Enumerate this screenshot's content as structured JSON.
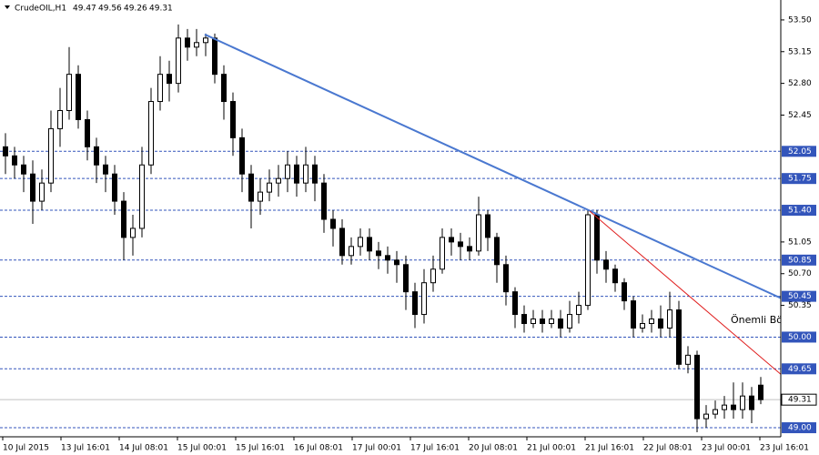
{
  "chart_data": {
    "type": "candlestick",
    "title": "CrudeOIL,H1",
    "header_values": [
      "49.47",
      "49.56",
      "49.26",
      "49.31"
    ],
    "open": [
      52.1,
      52.0,
      51.9,
      51.8,
      51.5,
      51.7,
      52.3,
      52.5,
      52.9,
      52.4,
      52.1,
      51.9,
      51.8,
      51.5,
      51.1,
      51.2,
      51.9,
      52.6,
      52.9,
      52.8,
      53.3,
      53.2,
      53.25,
      53.3,
      52.9,
      52.6,
      52.2,
      51.8,
      51.5,
      51.6,
      51.7,
      51.75,
      51.9,
      51.7,
      51.9,
      51.7,
      51.3,
      51.2,
      50.9,
      51.0,
      51.1,
      50.95,
      50.9,
      50.85,
      50.8,
      50.5,
      50.25,
      50.6,
      50.75,
      51.1,
      51.05,
      51.0,
      50.95,
      51.35,
      51.1,
      50.8,
      50.5,
      50.25,
      50.15,
      50.2,
      50.15,
      50.2,
      50.1,
      50.25,
      50.35,
      51.35,
      50.85,
      50.75,
      50.6,
      50.4,
      50.1,
      50.15,
      50.2,
      50.1,
      50.3,
      49.7,
      49.8,
      49.1,
      49.15,
      49.2,
      49.25,
      49.2,
      49.35,
      49.47
    ],
    "high": [
      52.25,
      52.1,
      52.0,
      51.95,
      51.85,
      52.5,
      52.75,
      53.2,
      53.0,
      52.5,
      52.2,
      52.0,
      51.9,
      51.6,
      51.35,
      52.1,
      52.75,
      53.1,
      53.05,
      53.45,
      53.4,
      53.4,
      53.35,
      53.35,
      53.0,
      52.7,
      52.3,
      51.9,
      51.75,
      51.85,
      51.9,
      52.05,
      52.0,
      52.1,
      52.0,
      51.8,
      51.4,
      51.3,
      51.1,
      51.2,
      51.2,
      51.05,
      51.0,
      50.95,
      50.9,
      50.6,
      50.75,
      50.9,
      51.2,
      51.2,
      51.15,
      51.1,
      51.55,
      51.4,
      51.15,
      50.9,
      50.55,
      50.35,
      50.3,
      50.3,
      50.3,
      50.3,
      50.4,
      50.5,
      51.4,
      51.4,
      50.95,
      50.8,
      50.65,
      50.45,
      50.25,
      50.3,
      50.35,
      50.5,
      50.4,
      49.9,
      49.85,
      49.25,
      49.3,
      49.35,
      49.5,
      49.5,
      49.45,
      49.56
    ],
    "low": [
      51.8,
      51.75,
      51.6,
      51.25,
      51.4,
      51.6,
      52.1,
      52.4,
      52.3,
      51.95,
      51.7,
      51.6,
      51.35,
      50.85,
      50.9,
      51.1,
      51.8,
      52.5,
      52.6,
      52.7,
      53.05,
      53.1,
      53.1,
      52.8,
      52.4,
      52.0,
      51.6,
      51.2,
      51.35,
      51.5,
      51.55,
      51.6,
      51.55,
      51.6,
      51.5,
      51.15,
      51.0,
      50.8,
      50.8,
      50.9,
      50.85,
      50.75,
      50.7,
      50.6,
      50.3,
      50.1,
      50.15,
      50.5,
      50.7,
      50.9,
      50.85,
      50.85,
      50.9,
      50.95,
      50.6,
      50.35,
      50.1,
      50.05,
      50.1,
      50.05,
      50.1,
      50.0,
      50.05,
      50.15,
      50.3,
      50.7,
      50.6,
      50.5,
      50.3,
      50.0,
      50.05,
      50.05,
      50.0,
      50.0,
      49.65,
      49.6,
      48.95,
      49.0,
      49.1,
      49.1,
      49.1,
      49.1,
      49.05,
      49.26
    ],
    "close": [
      52.0,
      51.9,
      51.8,
      51.5,
      51.7,
      52.3,
      52.5,
      52.9,
      52.4,
      52.1,
      51.9,
      51.8,
      51.5,
      51.1,
      51.2,
      51.9,
      52.6,
      52.9,
      52.8,
      53.3,
      53.2,
      53.25,
      53.3,
      52.9,
      52.6,
      52.2,
      51.8,
      51.5,
      51.6,
      51.7,
      51.75,
      51.9,
      51.7,
      51.9,
      51.7,
      51.3,
      51.2,
      50.9,
      51.0,
      51.1,
      50.95,
      50.9,
      50.85,
      50.8,
      50.5,
      50.25,
      50.6,
      50.75,
      51.1,
      51.05,
      51.0,
      50.95,
      51.35,
      51.1,
      50.8,
      50.5,
      50.25,
      50.15,
      50.2,
      50.15,
      50.2,
      50.1,
      50.25,
      50.35,
      51.35,
      50.85,
      50.75,
      50.6,
      50.4,
      50.1,
      50.15,
      50.2,
      50.1,
      50.3,
      49.7,
      49.8,
      49.1,
      49.15,
      49.2,
      49.25,
      49.2,
      49.35,
      49.2,
      49.31
    ],
    "up_color": "#ffffff",
    "down_color": "#000000",
    "wick_color": "#000000",
    "xlim": [
      -0.6,
      85.2
    ],
    "ylim": [
      48.9,
      53.72
    ],
    "xticks": [
      {
        "value": -0.3,
        "label": "10 Jul 2015"
      },
      {
        "value": 6.1,
        "label": "13 Jul 16:01"
      },
      {
        "value": 12.5,
        "label": "14 Jul 08:01"
      },
      {
        "value": 18.9,
        "label": "15 Jul 00:01"
      },
      {
        "value": 25.3,
        "label": "15 Jul 16:01"
      },
      {
        "value": 31.7,
        "label": "16 Jul 08:01"
      },
      {
        "value": 38.1,
        "label": "17 Jul 00:01"
      },
      {
        "value": 44.5,
        "label": "17 Jul 16:01"
      },
      {
        "value": 50.9,
        "label": "20 Jul 08:01"
      },
      {
        "value": 57.3,
        "label": "21 Jul 00:01"
      },
      {
        "value": 63.7,
        "label": "21 Jul 16:01"
      },
      {
        "value": 70.1,
        "label": "22 Jul 08:01"
      },
      {
        "value": 76.5,
        "label": "23 Jul 00:01"
      },
      {
        "value": 82.9,
        "label": "23 Jul 16:01"
      }
    ],
    "yticks": [
      {
        "value": 53.5,
        "label": "53.50"
      },
      {
        "value": 53.15,
        "label": "53.15"
      },
      {
        "value": 52.8,
        "label": "52.80"
      },
      {
        "value": 52.45,
        "label": "52.45"
      },
      {
        "value": 51.05,
        "label": "51.05"
      },
      {
        "value": 50.7,
        "label": "50.70"
      },
      {
        "value": 50.35,
        "label": "50.35"
      }
    ],
    "levels": [
      {
        "value": 52.05,
        "label": "52.05"
      },
      {
        "value": 51.75,
        "label": "51.75"
      },
      {
        "value": 51.4,
        "label": "51.40"
      },
      {
        "value": 50.85,
        "label": "50.85"
      },
      {
        "value": 50.45,
        "label": "50.45"
      },
      {
        "value": 50.0,
        "label": "50.00"
      },
      {
        "value": 49.65,
        "label": "49.65"
      },
      {
        "value": 49.0,
        "label": "49.00"
      }
    ],
    "level_color": "#3355bb",
    "current": {
      "value": 49.31,
      "label": "49.31"
    },
    "trendlines": [
      {
        "color": "#4a78d0",
        "x": [
          21.9,
          85.2
        ],
        "y": [
          53.34,
          50.43
        ]
      },
      {
        "color": "#e02020",
        "x": [
          64.2,
          85.2
        ],
        "y": [
          51.39,
          49.59
        ]
      }
    ],
    "annotation": "Önemli Bö"
  }
}
